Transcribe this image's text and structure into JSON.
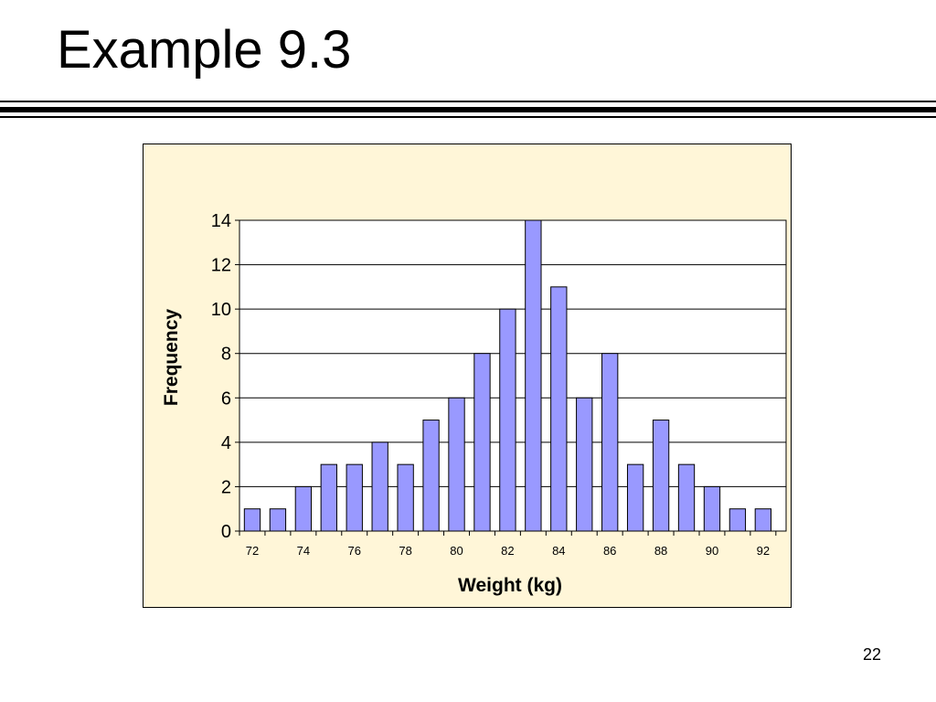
{
  "slide": {
    "title": "Example 9.3",
    "page_number": "22"
  },
  "colors": {
    "background": "#FFF6D8",
    "bar_fill": "#9999FF",
    "bar_stroke": "#000000"
  },
  "chart_data": {
    "type": "bar",
    "xlabel": "Weight (kg)",
    "ylabel": "Frequency",
    "categories": [
      72,
      73,
      74,
      75,
      76,
      77,
      78,
      79,
      80,
      81,
      82,
      83,
      84,
      85,
      86,
      87,
      88,
      89,
      90,
      91,
      92
    ],
    "values": [
      1,
      1,
      2,
      3,
      3,
      4,
      3,
      5,
      6,
      8,
      10,
      14,
      11,
      6,
      8,
      3,
      5,
      3,
      2,
      1,
      1
    ],
    "xtick_labels": [
      "72",
      "74",
      "76",
      "78",
      "80",
      "82",
      "84",
      "86",
      "88",
      "90",
      "92"
    ],
    "ylim": [
      0,
      14
    ],
    "yticks": [
      0,
      2,
      4,
      6,
      8,
      10,
      12,
      14
    ],
    "grid": true,
    "legend": "none"
  }
}
